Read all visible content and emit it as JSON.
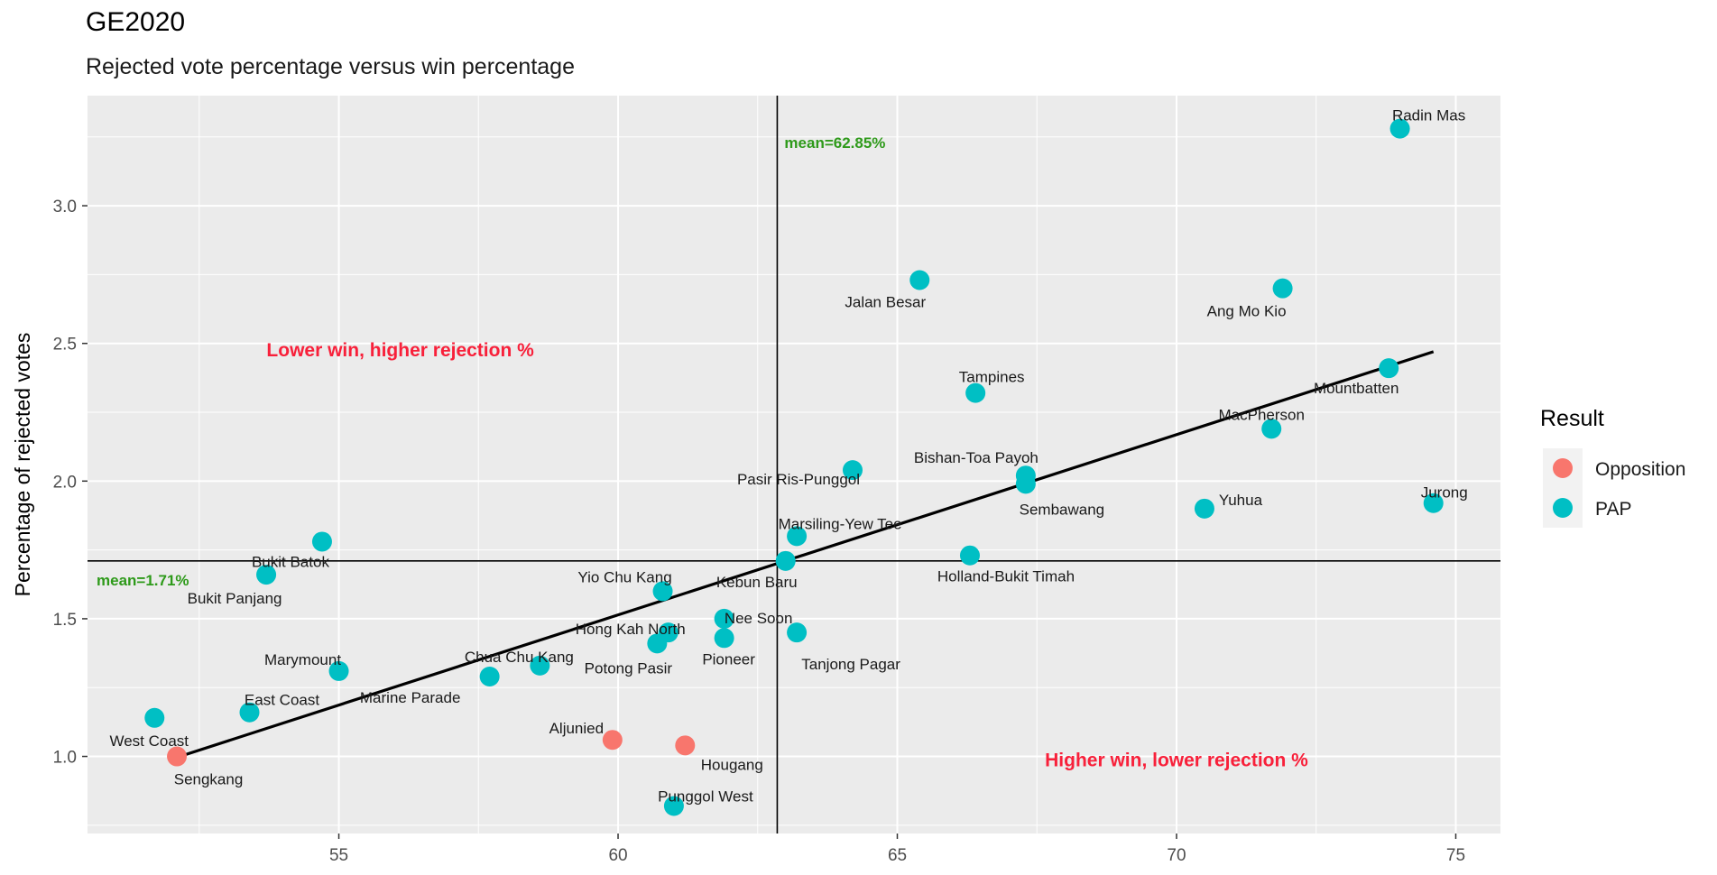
{
  "title": "GE2020",
  "subtitle": "Rejected vote percentage versus win percentage",
  "colors": {
    "Opposition": "#f8766d",
    "PAP": "#00bfc4",
    "panel": "#ebebeb",
    "grid": "#ffffff",
    "quadrant": "#f8203a",
    "mean": "#2e9a1a"
  },
  "chart_data": {
    "type": "scatter",
    "xlabel": "",
    "ylabel": "Percentage of rejected votes",
    "xlim": [
      50.5,
      75.8
    ],
    "ylim": [
      0.72,
      3.4
    ],
    "x_ticks": [
      55,
      60,
      65,
      70,
      75
    ],
    "x_tick_labels": [
      "55",
      "60",
      "65",
      "70",
      "75"
    ],
    "y_ticks": [
      1.0,
      1.5,
      2.0,
      2.5,
      3.0
    ],
    "y_tick_labels": [
      "1.0",
      "1.5",
      "2.0",
      "2.5",
      "3.0"
    ],
    "grid": true,
    "legend": {
      "title": "Result",
      "position": "right",
      "entries": [
        "Opposition",
        "PAP"
      ]
    },
    "mean_x": 62.85,
    "mean_y": 1.71,
    "mean_x_label": "mean=62.85%",
    "mean_y_label": "mean=1.71%",
    "quadrant_labels": [
      "Lower win, higher rejection %",
      "Higher win, lower rejection %"
    ],
    "trend_line": {
      "x": [
        52.0,
        74.6
      ],
      "y": [
        0.99,
        2.47
      ]
    },
    "points": [
      {
        "name": "Radin Mas",
        "x": 74.0,
        "y": 3.28,
        "result": "PAP"
      },
      {
        "name": "Jalan Besar",
        "x": 65.4,
        "y": 2.73,
        "result": "PAP"
      },
      {
        "name": "Ang Mo Kio",
        "x": 71.9,
        "y": 2.7,
        "result": "PAP"
      },
      {
        "name": "Mountbatten",
        "x": 73.8,
        "y": 2.41,
        "result": "PAP"
      },
      {
        "name": "Tampines",
        "x": 66.4,
        "y": 2.32,
        "result": "PAP"
      },
      {
        "name": "MacPherson",
        "x": 71.7,
        "y": 2.19,
        "result": "PAP"
      },
      {
        "name": "Pasir Ris-Punggol",
        "x": 64.2,
        "y": 2.04,
        "result": "PAP"
      },
      {
        "name": "Bishan-Toa Payoh",
        "x": 67.3,
        "y": 2.02,
        "result": "PAP"
      },
      {
        "name": "Sembawang",
        "x": 67.3,
        "y": 1.99,
        "result": "PAP"
      },
      {
        "name": "Jurong",
        "x": 74.6,
        "y": 1.92,
        "result": "PAP"
      },
      {
        "name": "Yuhua",
        "x": 70.5,
        "y": 1.9,
        "result": "PAP"
      },
      {
        "name": "Marsiling-Yew Tee",
        "x": 63.2,
        "y": 1.8,
        "result": "PAP"
      },
      {
        "name": "Bukit Batok",
        "x": 54.7,
        "y": 1.78,
        "result": "PAP"
      },
      {
        "name": "Holland-Bukit Timah",
        "x": 66.3,
        "y": 1.73,
        "result": "PAP"
      },
      {
        "name": "Kebun Baru",
        "x": 63.0,
        "y": 1.71,
        "result": "PAP"
      },
      {
        "name": "Bukit Panjang",
        "x": 53.7,
        "y": 1.66,
        "result": "PAP"
      },
      {
        "name": "Yio Chu Kang",
        "x": 60.8,
        "y": 1.6,
        "result": "PAP"
      },
      {
        "name": "Nee Soon",
        "x": 61.9,
        "y": 1.5,
        "result": "PAP"
      },
      {
        "name": "Hong Kah North",
        "x": 60.9,
        "y": 1.45,
        "result": "PAP"
      },
      {
        "name": "Tanjong Pagar",
        "x": 63.2,
        "y": 1.45,
        "result": "PAP"
      },
      {
        "name": "Pioneer",
        "x": 61.9,
        "y": 1.43,
        "result": "PAP"
      },
      {
        "name": "Potong Pasir",
        "x": 60.7,
        "y": 1.41,
        "result": "PAP"
      },
      {
        "name": "Chua Chu Kang",
        "x": 58.6,
        "y": 1.33,
        "result": "PAP"
      },
      {
        "name": "Marymount",
        "x": 55.0,
        "y": 1.31,
        "result": "PAP"
      },
      {
        "name": "Marine Parade",
        "x": 57.7,
        "y": 1.29,
        "result": "PAP"
      },
      {
        "name": "East Coast",
        "x": 53.4,
        "y": 1.16,
        "result": "PAP"
      },
      {
        "name": "West Coast",
        "x": 51.7,
        "y": 1.14,
        "result": "PAP"
      },
      {
        "name": "Aljunied",
        "x": 59.9,
        "y": 1.06,
        "result": "Opposition"
      },
      {
        "name": "Hougang",
        "x": 61.2,
        "y": 1.04,
        "result": "Opposition"
      },
      {
        "name": "Sengkang",
        "x": 52.1,
        "y": 1.0,
        "result": "Opposition"
      },
      {
        "name": "Punggol West",
        "x": 61.0,
        "y": 0.82,
        "result": "PAP"
      }
    ]
  }
}
